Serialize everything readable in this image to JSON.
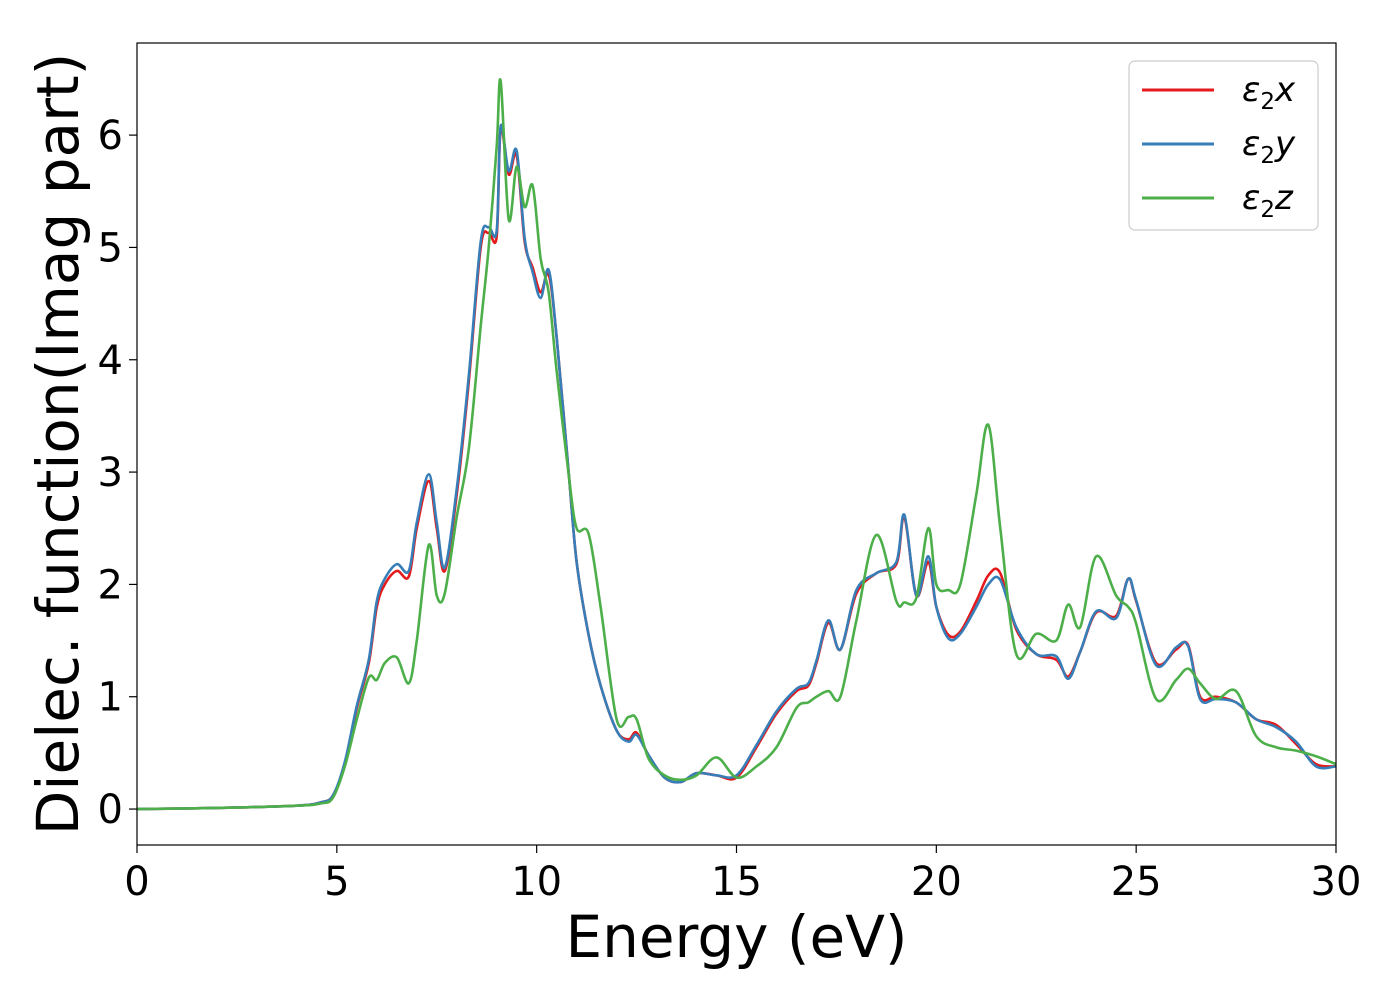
{
  "chart_data": {
    "type": "line",
    "xlabel": "Energy (eV)",
    "ylabel": "Dielec. function(Imag part)",
    "xlim": [
      0,
      30
    ],
    "ylim": [
      -0.32,
      6.82
    ],
    "xticks": [
      0,
      5,
      10,
      15,
      20,
      25,
      30
    ],
    "yticks": [
      0,
      1,
      2,
      3,
      4,
      5,
      6
    ],
    "grid": false,
    "legend_position": "top-right",
    "series": [
      {
        "name": "ε₂x",
        "legend": {
          "base": "ε",
          "sub": "2",
          "axis": "x"
        },
        "color": "#e41a1c",
        "x": [
          0,
          2,
          4,
          4.6,
          4.9,
          5.2,
          5.5,
          5.8,
          6.0,
          6.2,
          6.5,
          6.8,
          7.0,
          7.3,
          7.5,
          7.7,
          8.0,
          8.3,
          8.6,
          8.8,
          9.0,
          9.1,
          9.3,
          9.5,
          9.7,
          9.9,
          10.1,
          10.3,
          10.5,
          10.8,
          11.0,
          11.3,
          11.6,
          12.0,
          12.3,
          12.5,
          12.8,
          13.2,
          13.6,
          14.0,
          14.5,
          15.0,
          15.5,
          16.0,
          16.5,
          16.8,
          17.0,
          17.3,
          17.6,
          18.0,
          18.5,
          19.0,
          19.2,
          19.5,
          19.8,
          20.0,
          20.3,
          20.6,
          21.0,
          21.3,
          21.6,
          22.0,
          22.5,
          23.0,
          23.3,
          23.6,
          24.0,
          24.5,
          24.8,
          25.0,
          25.5,
          26.0,
          26.3,
          26.6,
          27.0,
          27.5,
          28.0,
          28.5,
          29.0,
          29.5,
          30.0
        ],
        "y": [
          0.0,
          0.01,
          0.03,
          0.06,
          0.12,
          0.4,
          0.9,
          1.3,
          1.8,
          2.0,
          2.12,
          2.07,
          2.5,
          2.92,
          2.5,
          2.12,
          2.8,
          3.8,
          5.0,
          5.13,
          5.1,
          6.06,
          5.65,
          5.82,
          5.05,
          4.82,
          4.6,
          4.76,
          4.2,
          3.0,
          2.2,
          1.55,
          1.1,
          0.7,
          0.62,
          0.68,
          0.48,
          0.28,
          0.24,
          0.32,
          0.3,
          0.28,
          0.55,
          0.85,
          1.05,
          1.1,
          1.3,
          1.66,
          1.42,
          1.92,
          2.1,
          2.18,
          2.6,
          1.9,
          2.2,
          1.8,
          1.55,
          1.58,
          1.85,
          2.08,
          2.1,
          1.6,
          1.38,
          1.33,
          1.18,
          1.4,
          1.75,
          1.72,
          2.05,
          1.85,
          1.3,
          1.42,
          1.46,
          1.0,
          1.0,
          0.95,
          0.8,
          0.75,
          0.58,
          0.4,
          0.38
        ]
      },
      {
        "name": "ε₂y",
        "legend": {
          "base": "ε",
          "sub": "2",
          "axis": "y"
        },
        "color": "#377eb8",
        "x": [
          0,
          2,
          4,
          4.6,
          4.9,
          5.2,
          5.5,
          5.8,
          6.0,
          6.2,
          6.5,
          6.8,
          7.0,
          7.3,
          7.5,
          7.7,
          8.0,
          8.3,
          8.6,
          8.8,
          9.0,
          9.1,
          9.3,
          9.5,
          9.7,
          9.9,
          10.1,
          10.3,
          10.5,
          10.8,
          11.0,
          11.3,
          11.6,
          12.0,
          12.3,
          12.5,
          12.8,
          13.2,
          13.6,
          14.0,
          14.5,
          15.0,
          15.5,
          16.0,
          16.5,
          16.8,
          17.0,
          17.3,
          17.6,
          18.0,
          18.5,
          19.0,
          19.2,
          19.5,
          19.8,
          20.0,
          20.3,
          20.6,
          21.0,
          21.3,
          21.6,
          22.0,
          22.5,
          23.0,
          23.3,
          23.6,
          24.0,
          24.5,
          24.8,
          25.0,
          25.5,
          26.0,
          26.3,
          26.6,
          27.0,
          27.5,
          28.0,
          28.5,
          29.0,
          29.5,
          30.0
        ],
        "y": [
          0.0,
          0.01,
          0.03,
          0.06,
          0.12,
          0.42,
          0.92,
          1.33,
          1.85,
          2.05,
          2.18,
          2.12,
          2.55,
          2.98,
          2.55,
          2.15,
          2.85,
          3.85,
          5.05,
          5.18,
          5.15,
          6.08,
          5.68,
          5.86,
          5.08,
          4.78,
          4.55,
          4.8,
          4.2,
          3.0,
          2.2,
          1.55,
          1.1,
          0.7,
          0.6,
          0.66,
          0.48,
          0.28,
          0.24,
          0.32,
          0.3,
          0.3,
          0.57,
          0.87,
          1.07,
          1.12,
          1.32,
          1.68,
          1.42,
          1.95,
          2.1,
          2.2,
          2.62,
          1.9,
          2.25,
          1.8,
          1.52,
          1.56,
          1.8,
          2.0,
          2.04,
          1.62,
          1.38,
          1.36,
          1.16,
          1.4,
          1.76,
          1.7,
          2.05,
          1.86,
          1.28,
          1.44,
          1.45,
          0.98,
          0.98,
          0.95,
          0.8,
          0.73,
          0.6,
          0.38,
          0.38
        ]
      },
      {
        "name": "ε₂z",
        "legend": {
          "base": "ε",
          "sub": "2",
          "axis": "z"
        },
        "color": "#4daf4a",
        "x": [
          0,
          2,
          4,
          4.6,
          4.9,
          5.2,
          5.5,
          5.8,
          6.0,
          6.2,
          6.5,
          6.8,
          7.0,
          7.3,
          7.5,
          7.7,
          8.0,
          8.3,
          8.6,
          8.8,
          9.0,
          9.1,
          9.3,
          9.5,
          9.7,
          9.9,
          10.1,
          10.3,
          10.5,
          10.8,
          11.0,
          11.3,
          11.6,
          12.0,
          12.3,
          12.5,
          12.8,
          13.2,
          13.6,
          14.0,
          14.5,
          15.0,
          15.5,
          16.0,
          16.5,
          16.8,
          17.0,
          17.3,
          17.6,
          18.0,
          18.5,
          19.0,
          19.2,
          19.5,
          19.8,
          20.0,
          20.3,
          20.6,
          21.0,
          21.3,
          21.6,
          22.0,
          22.5,
          23.0,
          23.3,
          23.6,
          24.0,
          24.5,
          24.8,
          25.0,
          25.5,
          26.0,
          26.3,
          26.6,
          27.0,
          27.5,
          28.0,
          28.5,
          29.0,
          29.5,
          30.0
        ],
        "y": [
          0.0,
          0.01,
          0.03,
          0.05,
          0.1,
          0.38,
          0.8,
          1.17,
          1.15,
          1.3,
          1.35,
          1.12,
          1.5,
          2.35,
          1.9,
          1.92,
          2.6,
          3.2,
          4.3,
          5.0,
          5.9,
          6.48,
          5.25,
          5.72,
          5.36,
          5.55,
          4.9,
          4.6,
          3.9,
          2.98,
          2.5,
          2.45,
          1.8,
          0.8,
          0.82,
          0.8,
          0.45,
          0.3,
          0.26,
          0.3,
          0.46,
          0.28,
          0.38,
          0.55,
          0.9,
          0.95,
          1.0,
          1.05,
          1.0,
          1.68,
          2.44,
          1.85,
          1.84,
          1.88,
          2.5,
          2.0,
          1.95,
          2.0,
          2.8,
          3.42,
          2.5,
          1.38,
          1.56,
          1.5,
          1.82,
          1.62,
          2.25,
          1.9,
          1.8,
          1.65,
          0.98,
          1.15,
          1.25,
          1.12,
          0.98,
          1.05,
          0.65,
          0.55,
          0.52,
          0.47,
          0.4
        ]
      }
    ]
  }
}
